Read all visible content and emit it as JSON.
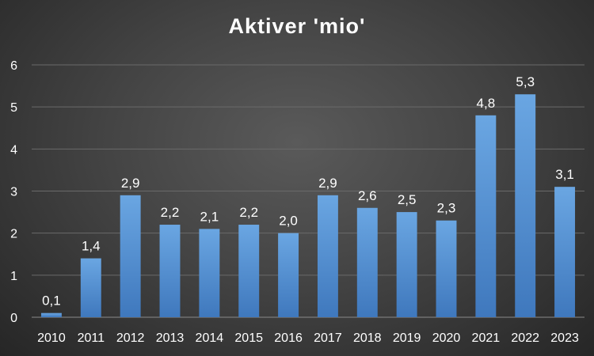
{
  "chart_data": {
    "type": "bar",
    "title": "Aktiver 'mio'",
    "categories": [
      "2010",
      "2011",
      "2012",
      "2013",
      "2014",
      "2015",
      "2016",
      "2017",
      "2018",
      "2019",
      "2020",
      "2021",
      "2022",
      "2023"
    ],
    "values": [
      0.1,
      1.4,
      2.9,
      2.2,
      2.1,
      2.2,
      2.0,
      2.9,
      2.6,
      2.5,
      2.3,
      4.8,
      5.3,
      3.1
    ],
    "data_labels": [
      "0,1",
      "1,4",
      "2,9",
      "2,2",
      "2,1",
      "2,2",
      "2,0",
      "2,9",
      "2,6",
      "2,5",
      "2,3",
      "4,8",
      "5,3",
      "3,1"
    ],
    "ylim": [
      0,
      6
    ],
    "yticks": [
      "0",
      "1",
      "2",
      "3",
      "4",
      "5",
      "6"
    ],
    "grid": true,
    "legend": "none",
    "xlabel": "",
    "ylabel": "",
    "colors": {
      "bar_top": "#6aa6e2",
      "bar_bottom": "#3f78bd",
      "text": "#ffffff",
      "grid": "#6a6a6a"
    }
  }
}
